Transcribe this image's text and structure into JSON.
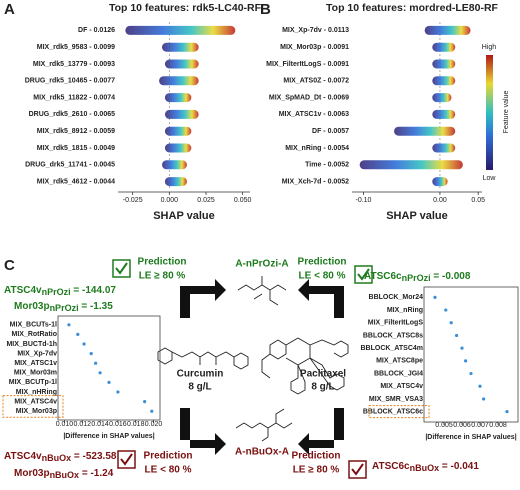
{
  "chart_data": [
    {
      "type": "beeswarm",
      "panel_label": "A",
      "title": "Top 10 features: rdk5-LC40-RF",
      "categories": [
        "DF - 0.0126",
        "MIX_rdk5_9583 - 0.0099",
        "MIX_rdk5_13779 - 0.0093",
        "DRUG_rdk5_10465 - 0.0077",
        "MIX_rdk5_11822 - 0.0074",
        "DRUG_rdk5_2610 - 0.0065",
        "MIX_rdk5_8912 - 0.0059",
        "MIX_rdk5_1815 - 0.0049",
        "DRUG_drk5_11741 - 0.0045",
        "MIX_rdk5_4612 - 0.0044"
      ],
      "values": [
        [
          -0.03,
          0.045
        ],
        [
          -0.005,
          0.02
        ],
        [
          -0.003,
          0.02
        ],
        [
          -0.007,
          0.02
        ],
        [
          -0.003,
          0.015
        ],
        [
          -0.003,
          0.02
        ],
        [
          -0.003,
          0.015
        ],
        [
          -0.003,
          0.015
        ],
        [
          -0.005,
          0.012
        ],
        [
          -0.003,
          0.012
        ]
      ],
      "xlabel": "SHAP value",
      "xlim": [
        -0.035,
        0.055
      ],
      "xticks": [
        -0.025,
        {
          "value": 0,
          "label": "0.000"
        },
        0.025,
        {
          "value": 0.05,
          "label": "0.050"
        }
      ]
    },
    {
      "type": "beeswarm",
      "panel_label": "B",
      "title": "Top 10 features: mordred-LE80-RF",
      "categories": [
        "MIX_Xp-7dv - 0.0113",
        "MIX_Mor03p - 0.0091",
        "MIX_FilterItLogS - 0.0091",
        "MIX_ATS0Z - 0.0072",
        "MIX_SpMAD_Dt - 0.0069",
        "MIX_ATSC1v - 0.0063",
        "DF - 0.0057",
        "MIX_nRing - 0.0054",
        "Time - 0.0052",
        "MIX_Xch-7d - 0.0052"
      ],
      "values": [
        [
          -0.02,
          0.04
        ],
        [
          -0.01,
          0.02
        ],
        [
          -0.01,
          0.02
        ],
        [
          -0.01,
          0.02
        ],
        [
          -0.01,
          0.015
        ],
        [
          -0.01,
          0.02
        ],
        [
          -0.06,
          0.02
        ],
        [
          -0.01,
          0.02
        ],
        [
          -0.105,
          0.03
        ],
        [
          -0.01,
          0.01
        ]
      ],
      "xlabel": "SHAP value",
      "xlim": [
        -0.115,
        0.055
      ],
      "xticks": [
        {
          "value": -0.1,
          "label": "-0.10"
        },
        {
          "value": 0,
          "label": "0.00"
        },
        0.05
      ],
      "colorbar": {
        "label": "Feature value",
        "high": "High",
        "low": "Low"
      }
    },
    {
      "type": "dot",
      "color": "#3a8fd8",
      "categories": [
        "MIX_BCUTs-1l",
        "MIX_RotRatio",
        "MIX_BUCTd-1h",
        "MIX_Xp-7dv",
        "MIX_ATSC1v",
        "MIX_Mor03m",
        "MIX_BCUTp-1l",
        "MIX_nHRing",
        "MIX_ATSC4v",
        "MIX_Mor03p"
      ],
      "values": [
        0.0105,
        0.0115,
        0.0122,
        0.013,
        0.0135,
        0.014,
        0.015,
        0.016,
        0.019,
        0.0198
      ],
      "highlight_count": 2,
      "highlight_color": "#e8801a",
      "xlabel": "|Difference in SHAP values|",
      "xlim": [
        0.0095,
        0.0205
      ],
      "xticks": [
        {
          "value": 0.01,
          "label": "0.010"
        },
        0.012,
        0.014,
        0.016,
        0.018,
        {
          "value": 0.02,
          "label": "0.020"
        }
      ]
    },
    {
      "type": "dot",
      "color": "#3a8fd8",
      "categories": [
        "BBLOCK_Mor24",
        "MIX_nRing",
        "MIX_FilterItLogS",
        "BBLOCK_ATSC8s",
        "BBLOCK_ATSC4m",
        "MIX_ATSC8pe",
        "BBLOCK_JGI4",
        "MIX_ATSC4v",
        "MIX_SMR_VSA3",
        "BBLOCK_ATSC6c"
      ],
      "values": [
        0.0045,
        0.0051,
        0.0054,
        0.0057,
        0.006,
        0.0062,
        0.0065,
        0.007,
        0.0072,
        0.0085
      ],
      "highlight_count": 1,
      "highlight_color": "#e8801a",
      "xlabel": "|Difference in SHAP values|",
      "xlim": [
        0.004,
        0.009
      ],
      "xticks": [
        0.005,
        0.006,
        0.007,
        0.008
      ]
    }
  ],
  "panel_c": {
    "label": "C",
    "top_molecule": "A-nPrOzi-A",
    "bottom_molecule": "A-nBuOx-A",
    "top_left": {
      "line1": "Prediction",
      "line2": "LE ≥ 80 %"
    },
    "top_right": {
      "line1": "Prediction",
      "line2": "LE < 80 %"
    },
    "bottom_left": {
      "line1": "Prediction",
      "line2": "LE < 80 %"
    },
    "bottom_right": {
      "line1": "Prediction",
      "line2": "LE ≥ 80 %"
    },
    "drug_left": {
      "name": "Curcumin",
      "conc": "8 g/L"
    },
    "drug_right": {
      "name": "Paclitaxel",
      "conc": "8 g/L"
    },
    "eq_left_top": [
      {
        "name": "ATSC4v",
        "sub": "nPrOzi",
        "rest": " = -144.07"
      },
      {
        "name": "Mor03p",
        "sub": "nPrOzi",
        "rest": " = -1.35"
      }
    ],
    "eq_left_bottom": [
      {
        "name": "ATSC4v",
        "sub": "nBuOx",
        "rest": " = -523.58"
      },
      {
        "name": "Mor03p",
        "sub": "nBuOx",
        "rest": " = -1.24"
      }
    ],
    "eq_right_top": {
      "name": "ATSC6c",
      "sub": "nPrOzi",
      "rest": " = -0.008"
    },
    "eq_right_bottom": {
      "name": "ATSC6c",
      "sub": "nBuOx",
      "rest": " = -0.041"
    }
  }
}
